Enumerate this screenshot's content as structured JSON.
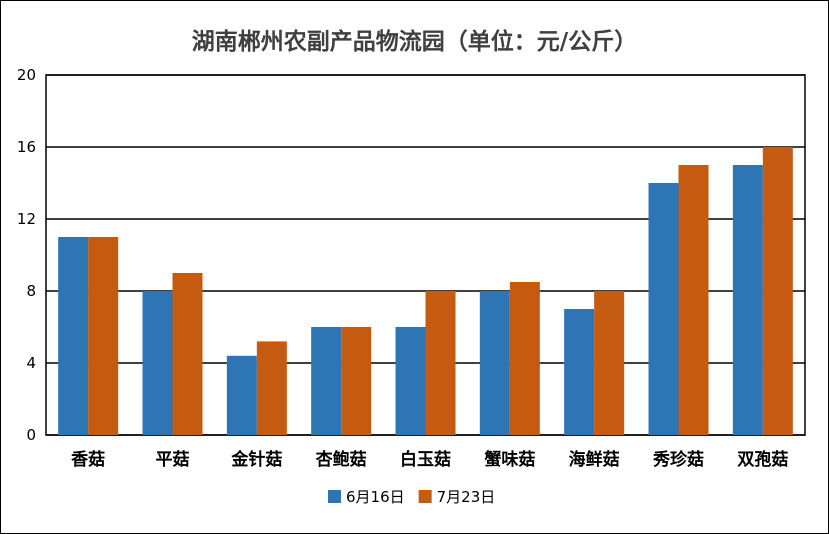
{
  "chart_data": {
    "type": "bar",
    "title": "湖南郴州农副产品物流园（单位：元/公斤）",
    "categories": [
      "香菇",
      "平菇",
      "金针菇",
      "杏鲍菇",
      "白玉菇",
      "蟹味菇",
      "海鲜菇",
      "秀珍菇",
      "双孢菇"
    ],
    "series": [
      {
        "name": "6月16日",
        "values": [
          11,
          8,
          4.4,
          6,
          6,
          8,
          7,
          14,
          15
        ],
        "color": "#2E75B6"
      },
      {
        "name": "7月23日",
        "values": [
          11,
          9,
          5.2,
          6,
          8,
          8.5,
          8,
          15,
          16
        ],
        "color": "#C55A11"
      }
    ],
    "ylim": [
      0,
      20
    ],
    "yticks": [
      0,
      4,
      8,
      12,
      16,
      20
    ],
    "grid": true,
    "legend": "bottom"
  }
}
